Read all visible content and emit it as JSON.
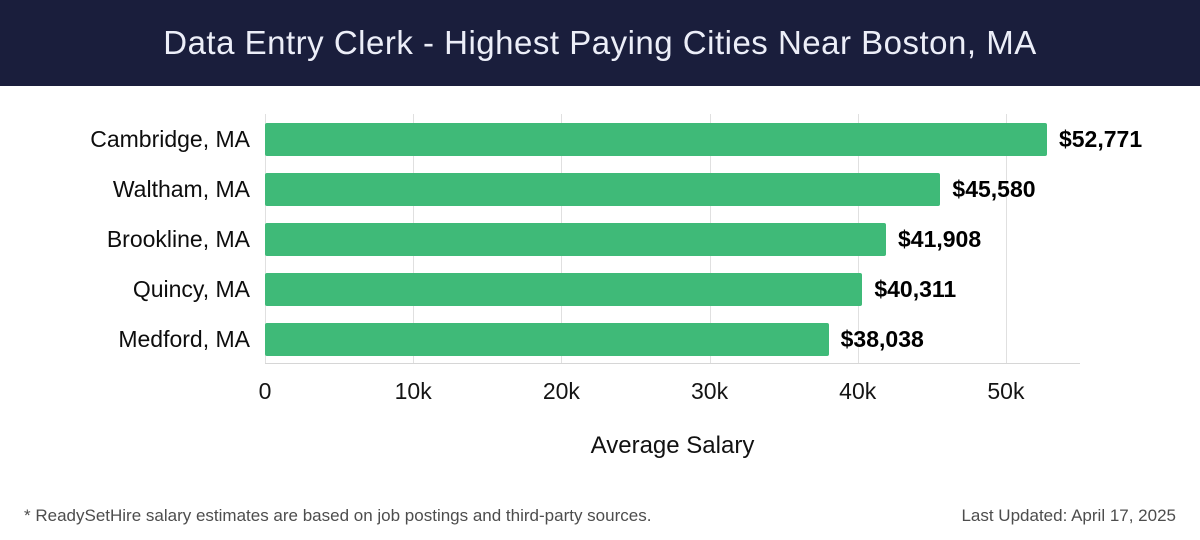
{
  "header": {
    "title": "Data Entry Clerk - Highest Paying Cities Near Boston, MA"
  },
  "chart_data": {
    "type": "bar",
    "orientation": "horizontal",
    "title": "Data Entry Clerk - Highest Paying Cities Near Boston, MA",
    "categories": [
      "Cambridge, MA",
      "Waltham, MA",
      "Brookline, MA",
      "Quincy, MA",
      "Medford, MA"
    ],
    "values": [
      52771,
      45580,
      41908,
      40311,
      38038
    ],
    "value_labels": [
      "$52,771",
      "$45,580",
      "$41,908",
      "$40,311",
      "$38,038"
    ],
    "xlabel": "Average Salary",
    "ylabel": "",
    "xlim": [
      0,
      55000
    ],
    "xticks": [
      0,
      10000,
      20000,
      30000,
      40000,
      50000
    ],
    "xtick_labels": [
      "0",
      "10k",
      "20k",
      "30k",
      "40k",
      "50k"
    ],
    "grid": true,
    "legend": "none"
  },
  "footer": {
    "disclaimer": "* ReadySetHire salary estimates are based on job postings and third-party sources.",
    "last_updated": "Last Updated: April 17, 2025"
  },
  "colors": {
    "header_bg": "#1a1e3c",
    "header_text": "#eceef8",
    "bar": "#3fba78",
    "grid": "#e0e0e0",
    "value_text": "#000000",
    "footer_text": "#4d4d4d"
  }
}
